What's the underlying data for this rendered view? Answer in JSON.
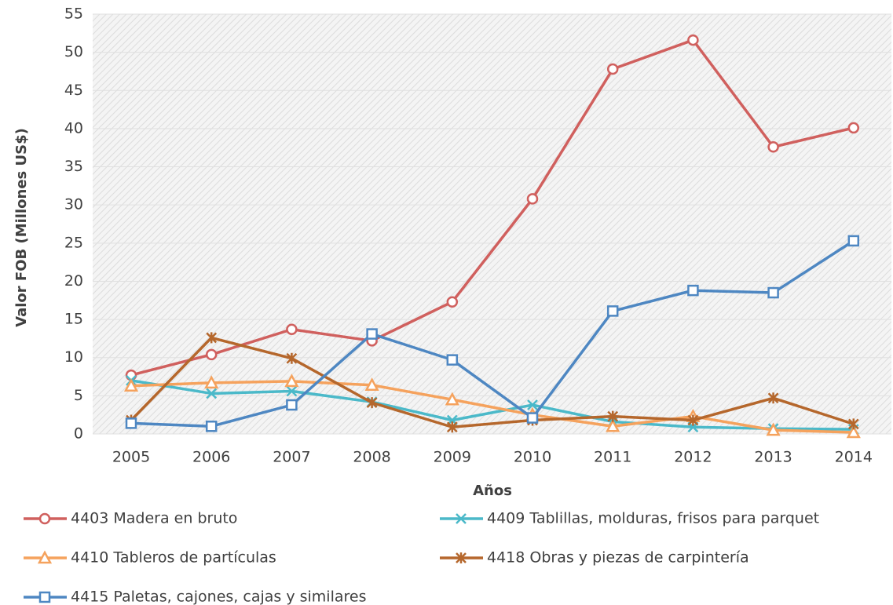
{
  "chart_data": {
    "type": "line",
    "x_label": "Años",
    "y_label": "Valor FOB (Millones US$)",
    "categories": [
      "2005",
      "2006",
      "2007",
      "2008",
      "2009",
      "2010",
      "2011",
      "2012",
      "2013",
      "2014"
    ],
    "series": [
      {
        "name": "4403 Madera en bruto",
        "color": "#d0605e",
        "marker": "circle",
        "values": [
          7.7,
          10.4,
          13.7,
          12.2,
          17.3,
          30.8,
          47.8,
          51.6,
          37.6,
          40.1
        ]
      },
      {
        "name": "4409 Tablillas, molduras, frisos para parquet",
        "color": "#4bb9c9",
        "marker": "x",
        "values": [
          7.0,
          5.3,
          5.6,
          4.2,
          1.8,
          3.8,
          1.6,
          0.9,
          0.7,
          0.6
        ]
      },
      {
        "name": "4410 Tableros de partículas",
        "color": "#f5a25d",
        "marker": "triangle",
        "values": [
          6.3,
          6.7,
          6.9,
          6.4,
          4.5,
          2.5,
          1.0,
          2.3,
          0.5,
          0.2
        ]
      },
      {
        "name": "4418 Obras y piezas de carpintería",
        "color": "#b5672c",
        "marker": "star",
        "values": [
          1.8,
          12.6,
          9.9,
          4.1,
          0.9,
          1.8,
          2.3,
          1.8,
          4.7,
          1.3
        ]
      },
      {
        "name": "4415 Paletas, cajones, cajas y similares",
        "color": "#4e87c2",
        "marker": "square",
        "values": [
          1.4,
          1.0,
          3.8,
          13.1,
          9.7,
          2.1,
          16.1,
          18.8,
          18.5,
          25.3
        ]
      }
    ],
    "ylim": [
      0,
      55
    ],
    "yticks": [
      0,
      5,
      10,
      15,
      20,
      25,
      30,
      35,
      40,
      45,
      50,
      55
    ],
    "grid": true
  }
}
